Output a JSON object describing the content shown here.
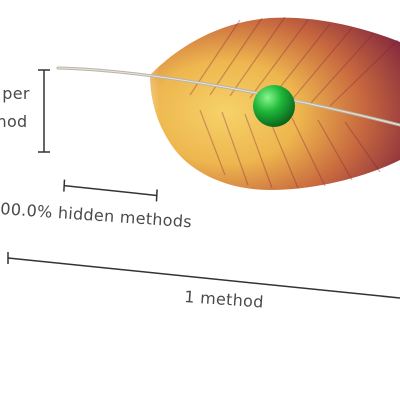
{
  "scale_bar_vertical": {
    "label_line1": "per",
    "label_line2": "hod"
  },
  "scale_bar_hidden": {
    "label": "00.0% hidden methods"
  },
  "scale_bar_total": {
    "label": "1 method"
  },
  "colors": {
    "feather_dark": "#7a1f3d",
    "feather_mid": "#c4613a",
    "feather_light": "#f2c255",
    "marker": "#1fb83a",
    "rule": "#333333",
    "text": "#4a4a4a"
  },
  "icons": {
    "marker": "green-sphere-icon",
    "feather": "feather-illustration"
  }
}
